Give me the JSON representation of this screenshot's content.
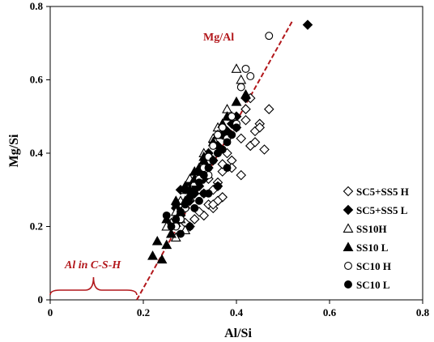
{
  "colors": {
    "axis": "#000000",
    "accent": "#b2171b",
    "marker": "#000000",
    "background": "#ffffff"
  },
  "chart_data": {
    "type": "scatter",
    "title": "",
    "xlabel": "Al/Si",
    "ylabel": "Mg/Si",
    "xlim": [
      0,
      0.8
    ],
    "ylim": [
      0,
      0.8
    ],
    "xticks": [
      "0",
      "0.2",
      "0.4",
      "0.6",
      "0.8"
    ],
    "yticks": [
      "0",
      "0.2",
      "0.4",
      "0.6",
      "0.8"
    ],
    "grid": false,
    "legend_position": "lower-right",
    "series": [
      {
        "name": "SC5+SS5 H",
        "marker": "diamond-open",
        "x": [
          0.4,
          0.42,
          0.45,
          0.47,
          0.44,
          0.43,
          0.46,
          0.41,
          0.39,
          0.38,
          0.37,
          0.36,
          0.35,
          0.37,
          0.39,
          0.41,
          0.36,
          0.34,
          0.33,
          0.35,
          0.32,
          0.31,
          0.3,
          0.29,
          0.33,
          0.36,
          0.34,
          0.38,
          0.4,
          0.42,
          0.43,
          0.45,
          0.44,
          0.37,
          0.35
        ],
        "y": [
          0.5,
          0.52,
          0.48,
          0.52,
          0.46,
          0.42,
          0.41,
          0.44,
          0.38,
          0.4,
          0.35,
          0.32,
          0.3,
          0.28,
          0.36,
          0.34,
          0.27,
          0.26,
          0.23,
          0.25,
          0.24,
          0.22,
          0.2,
          0.21,
          0.29,
          0.31,
          0.33,
          0.45,
          0.47,
          0.49,
          0.55,
          0.47,
          0.43,
          0.37,
          0.26
        ]
      },
      {
        "name": "SC5+SS5 L",
        "marker": "diamond-filled",
        "x": [
          0.553,
          0.42,
          0.39,
          0.37,
          0.36,
          0.35,
          0.34,
          0.33,
          0.32,
          0.31,
          0.3,
          0.29,
          0.28,
          0.27,
          0.26,
          0.27,
          0.28,
          0.3,
          0.32,
          0.34,
          0.35,
          0.38,
          0.4
        ],
        "y": [
          0.75,
          0.55,
          0.48,
          0.45,
          0.42,
          0.38,
          0.36,
          0.33,
          0.31,
          0.29,
          0.27,
          0.25,
          0.23,
          0.21,
          0.2,
          0.25,
          0.3,
          0.32,
          0.35,
          0.4,
          0.43,
          0.46,
          0.5
        ]
      },
      {
        "name": "SS10H",
        "marker": "triangle-open",
        "x": [
          0.4,
          0.41,
          0.38,
          0.36,
          0.35,
          0.33,
          0.32,
          0.3,
          0.29,
          0.28,
          0.27,
          0.26,
          0.25,
          0.26,
          0.28,
          0.3,
          0.31,
          0.34,
          0.36,
          0.39,
          0.29,
          0.27
        ],
        "y": [
          0.63,
          0.6,
          0.52,
          0.47,
          0.44,
          0.4,
          0.36,
          0.33,
          0.3,
          0.27,
          0.24,
          0.21,
          0.2,
          0.18,
          0.22,
          0.28,
          0.32,
          0.38,
          0.45,
          0.5,
          0.19,
          0.17
        ]
      },
      {
        "name": "SS10 L",
        "marker": "triangle-filled",
        "x": [
          0.22,
          0.24,
          0.25,
          0.26,
          0.27,
          0.28,
          0.29,
          0.3,
          0.31,
          0.32,
          0.33,
          0.34,
          0.35,
          0.36,
          0.37,
          0.38,
          0.4,
          0.42,
          0.27,
          0.29,
          0.31,
          0.33,
          0.25,
          0.23
        ],
        "y": [
          0.12,
          0.11,
          0.15,
          0.18,
          0.21,
          0.24,
          0.27,
          0.3,
          0.33,
          0.36,
          0.38,
          0.4,
          0.43,
          0.45,
          0.48,
          0.5,
          0.54,
          0.56,
          0.27,
          0.31,
          0.35,
          0.39,
          0.22,
          0.16
        ]
      },
      {
        "name": "SC10 H",
        "marker": "circle-open",
        "x": [
          0.47,
          0.43,
          0.42,
          0.41,
          0.39,
          0.37,
          0.36,
          0.35,
          0.34,
          0.33,
          0.32,
          0.31,
          0.3,
          0.29,
          0.28,
          0.27,
          0.36,
          0.38,
          0.4,
          0.34
        ],
        "y": [
          0.72,
          0.61,
          0.63,
          0.58,
          0.5,
          0.47,
          0.45,
          0.42,
          0.39,
          0.36,
          0.33,
          0.3,
          0.28,
          0.25,
          0.22,
          0.2,
          0.4,
          0.44,
          0.48,
          0.34
        ]
      },
      {
        "name": "SC10 L",
        "marker": "circle-filled",
        "x": [
          0.26,
          0.27,
          0.28,
          0.29,
          0.3,
          0.31,
          0.32,
          0.33,
          0.34,
          0.35,
          0.36,
          0.37,
          0.38,
          0.39,
          0.4,
          0.28,
          0.3,
          0.32,
          0.34,
          0.36,
          0.38,
          0.25,
          0.27,
          0.29,
          0.31,
          0.33
        ],
        "y": [
          0.2,
          0.22,
          0.24,
          0.26,
          0.28,
          0.3,
          0.32,
          0.34,
          0.36,
          0.38,
          0.4,
          0.41,
          0.43,
          0.45,
          0.47,
          0.18,
          0.2,
          0.27,
          0.29,
          0.31,
          0.36,
          0.23,
          0.26,
          0.3,
          0.25,
          0.29
        ]
      }
    ],
    "trendline": {
      "label": "Mg/Al",
      "style": "dashed",
      "x": [
        0.186,
        0.52
      ],
      "y": [
        0,
        0.76
      ]
    },
    "annotation": {
      "label": "Al in C-S-H",
      "brace_x": [
        0,
        0.186
      ]
    }
  }
}
